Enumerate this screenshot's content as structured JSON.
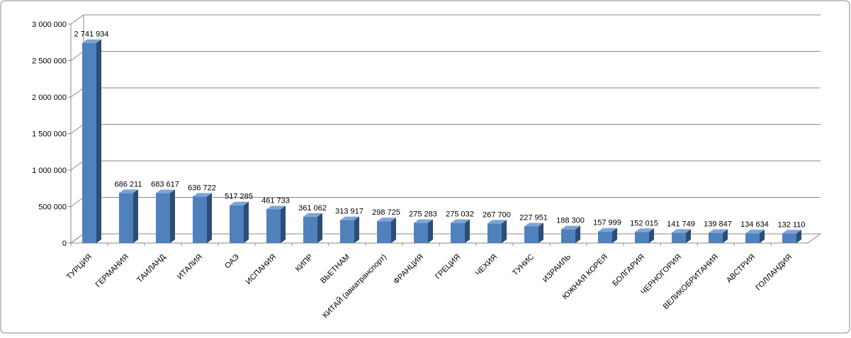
{
  "chart_data": {
    "type": "bar3d",
    "categories": [
      "ТУРЦИЯ",
      "ГЕРМАНИЯ",
      "ТАИЛАНД",
      "ИТАЛИЯ",
      "ОАЭ",
      "ИСПАНИЯ",
      "КИПР",
      "ВЬЕТНАМ",
      "КИТАЙ (авиатранспорт)",
      "ФРАНЦИЯ",
      "ГРЕЦИЯ",
      "ЧЕХИЯ",
      "ТУНИС",
      "ИЗРАИЛЬ",
      "ЮЖНАЯ КОРЕЯ",
      "БОЛГАРИЯ",
      "ЧЕРНОГОРИЯ",
      "ВЕЛИКОБРИТАНИЯ",
      "АВСТРИЯ",
      "ГОЛЛАНДИЯ"
    ],
    "values": [
      2741934,
      686211,
      683617,
      636722,
      517285,
      461733,
      361062,
      313917,
      298725,
      275283,
      275032,
      267700,
      227951,
      188300,
      157999,
      152015,
      141749,
      139847,
      134634,
      132110
    ],
    "value_labels": [
      "2 741 934",
      "686 211",
      "683 617",
      "636 722",
      "517 285",
      "461 733",
      "361 062",
      "313 917",
      "298 725",
      "275 283",
      "275 032",
      "267 700",
      "227 951",
      "188 300",
      "157 999",
      "152 015",
      "141 749",
      "139 847",
      "134 634",
      "132 110"
    ],
    "color": "#4f81bd",
    "ylim": [
      0,
      3000000
    ],
    "yticks": [
      0,
      {
        "value": 500000,
        "label": "500 000"
      },
      {
        "value": 1000000,
        "label": "1 000 000"
      },
      {
        "value": 1500000,
        "label": "1 500 000"
      },
      {
        "value": 2000000,
        "label": "2 000 000"
      },
      {
        "value": 2500000,
        "label": "2 500 000"
      },
      {
        "value": 3000000,
        "label": "3 000 000"
      }
    ],
    "grid": true
  }
}
